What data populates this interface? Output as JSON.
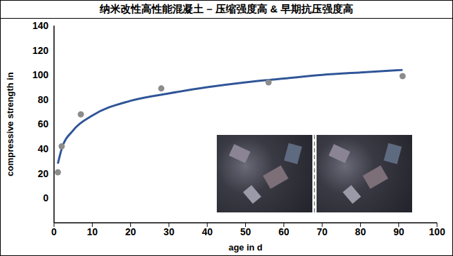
{
  "chart_data": {
    "type": "scatter",
    "title": "纳米改性高性能混凝土 – 压缩强度高 & 早期抗压强度高",
    "x_label": "age in d",
    "y_label": "compressive strength in",
    "xlim": [
      0,
      100
    ],
    "xticks": [
      0,
      10,
      20,
      30,
      40,
      50,
      60,
      70,
      80,
      90,
      100
    ],
    "ylim": [
      -20,
      140
    ],
    "yticks": [
      0,
      20,
      40,
      60,
      80,
      100,
      120,
      140
    ],
    "grid": false,
    "series": [
      {
        "type": "scatter",
        "color": "#8c8c8c",
        "marker": "circle",
        "x": [
          1,
          2,
          7,
          28,
          56,
          91
        ],
        "values": [
          21,
          42,
          68,
          89,
          94,
          99
        ]
      },
      {
        "type": "line",
        "color": "#2f5597",
        "line_style": "solid",
        "x": [
          1,
          2,
          5,
          10,
          20,
          30,
          40,
          50,
          60,
          70,
          80,
          91
        ],
        "values": [
          28,
          40,
          55,
          67,
          79,
          85,
          90,
          94,
          97,
          100,
          102,
          104
        ]
      }
    ]
  }
}
